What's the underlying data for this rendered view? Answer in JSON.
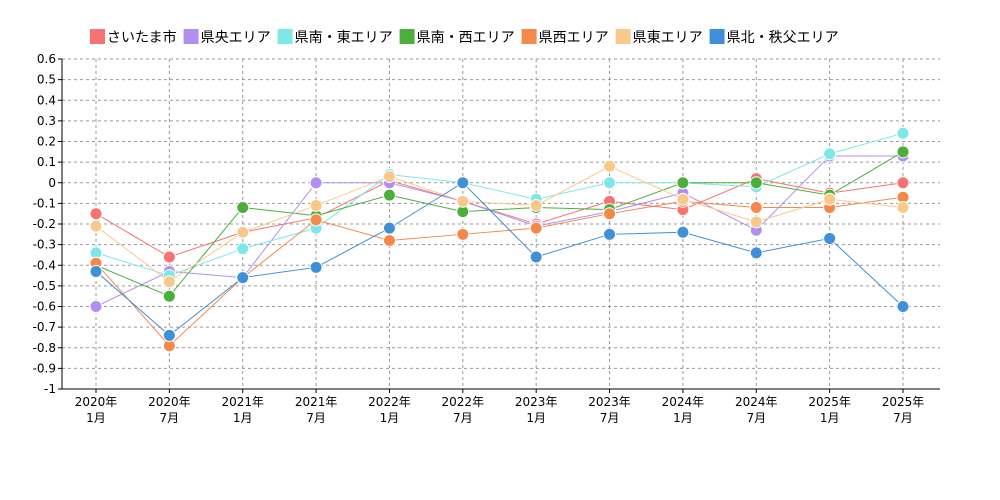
{
  "chart_data": {
    "type": "line",
    "categories": [
      [
        "2020年",
        "1月"
      ],
      [
        "2020年",
        "7月"
      ],
      [
        "2021年",
        "1月"
      ],
      [
        "2021年",
        "7月"
      ],
      [
        "2022年",
        "1月"
      ],
      [
        "2022年",
        "7月"
      ],
      [
        "2023年",
        "1月"
      ],
      [
        "2023年",
        "7月"
      ],
      [
        "2024年",
        "1月"
      ],
      [
        "2024年",
        "7月"
      ],
      [
        "2025年",
        "1月"
      ],
      [
        "2025年",
        "7月"
      ]
    ],
    "y_ticks": [
      "0.6",
      "0.5",
      "0.4",
      "0.3",
      "0.2",
      "0.1",
      "0",
      "-0.1",
      "-0.2",
      "-0.3",
      "-0.4",
      "-0.5",
      "-0.6",
      "-0.7",
      "-0.8",
      "-0.9",
      "-1"
    ],
    "ylim": [
      -1,
      0.6
    ],
    "grid": true,
    "legend_position": "top",
    "series": [
      {
        "name": "さいたま市",
        "color": "#f77272",
        "values": [
          -0.15,
          -0.36,
          -0.24,
          -0.17,
          0.01,
          -0.09,
          -0.2,
          -0.09,
          -0.13,
          0.02,
          -0.05,
          0.0
        ]
      },
      {
        "name": "県央エリア",
        "color": "#b08ff0",
        "values": [
          -0.6,
          -0.43,
          -0.46,
          0.0,
          0.0,
          -0.09,
          -0.21,
          -0.14,
          -0.05,
          -0.23,
          0.13,
          0.13
        ]
      },
      {
        "name": "県南・東エリア",
        "color": "#7ee8e8",
        "values": [
          -0.34,
          -0.45,
          -0.32,
          -0.22,
          0.04,
          0.0,
          -0.08,
          0.0,
          0.0,
          -0.02,
          0.14,
          0.24
        ]
      },
      {
        "name": "県南・西エリア",
        "color": "#4caf3c",
        "values": [
          -0.4,
          -0.55,
          -0.12,
          -0.16,
          -0.06,
          -0.14,
          -0.12,
          -0.13,
          0.0,
          0.0,
          -0.06,
          0.15
        ]
      },
      {
        "name": "県西エリア",
        "color": "#f5894a",
        "values": [
          -0.39,
          -0.79,
          -0.46,
          -0.18,
          -0.28,
          -0.25,
          -0.22,
          -0.15,
          -0.09,
          -0.12,
          -0.12,
          -0.07
        ]
      },
      {
        "name": "県東エリア",
        "color": "#f9c98c",
        "values": [
          -0.21,
          -0.48,
          -0.24,
          -0.11,
          0.03,
          -0.09,
          -0.11,
          0.08,
          -0.08,
          -0.19,
          -0.08,
          -0.12
        ]
      },
      {
        "name": "県北・秩父エリア",
        "color": "#3f8fd9",
        "values": [
          -0.43,
          -0.74,
          -0.46,
          -0.41,
          -0.22,
          0.0,
          -0.36,
          -0.25,
          -0.24,
          -0.34,
          -0.27,
          -0.6
        ]
      }
    ]
  }
}
